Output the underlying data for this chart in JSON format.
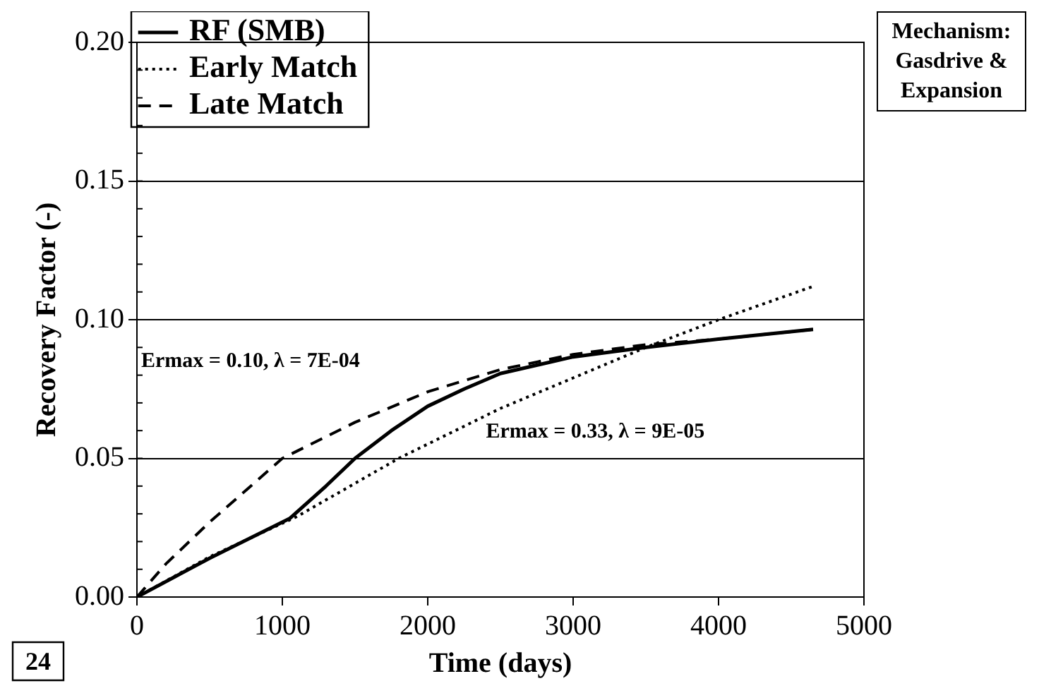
{
  "chart_data": {
    "type": "line",
    "xlabel": "Time (days)",
    "ylabel": "Recovery Factor (-)",
    "xlim": [
      0,
      5000
    ],
    "xticks": [
      0,
      1000,
      2000,
      3000,
      4000,
      5000
    ],
    "ylim": [
      0,
      0.2
    ],
    "yticks": [
      {
        "value": 0,
        "label": "0.00"
      },
      {
        "value": 0.05,
        "label": "0.05"
      },
      {
        "value": 0.1,
        "label": "0.10"
      },
      {
        "value": 0.15,
        "label": "0.15"
      },
      {
        "value": 0.2,
        "label": "0.20"
      }
    ],
    "grid": "y",
    "legend": "top left",
    "marker": "none",
    "series": [
      {
        "name": "RF (SMB)",
        "color": "#000000",
        "line_style": "solid",
        "x": [
          0,
          500,
          1050,
          1300,
          1500,
          1750,
          2000,
          2250,
          2500,
          3000,
          3500,
          4000,
          4650
        ],
        "values": [
          0,
          0.014,
          0.0283,
          0.04,
          0.05,
          0.06,
          0.0688,
          0.075,
          0.0806,
          0.0866,
          0.09,
          0.093,
          0.0965
        ]
      },
      {
        "name": "Early Match",
        "color": "#000000",
        "line_style": "dotted",
        "x": [
          0,
          500,
          1100,
          1800,
          2500,
          3000,
          3500,
          4000,
          4650
        ],
        "values": [
          0,
          0.0145,
          0.029,
          0.05,
          0.068,
          0.079,
          0.09,
          0.1,
          0.112
        ]
      },
      {
        "name": "Late Match",
        "color": "#000000",
        "line_style": "dashed",
        "x": [
          0,
          200,
          500,
          1000,
          1500,
          2000,
          2500,
          3000,
          3500,
          4000,
          4650
        ],
        "values": [
          0,
          0.012,
          0.027,
          0.05,
          0.063,
          0.074,
          0.082,
          0.0875,
          0.091,
          0.093,
          0.0965
        ]
      }
    ],
    "annotations": [
      "Ermax = 0.10, λ = 7E-04",
      "Ermax = 0.33, λ = 9E-05",
      "Mechanism: Gasdrive & Expansion",
      "24"
    ]
  }
}
